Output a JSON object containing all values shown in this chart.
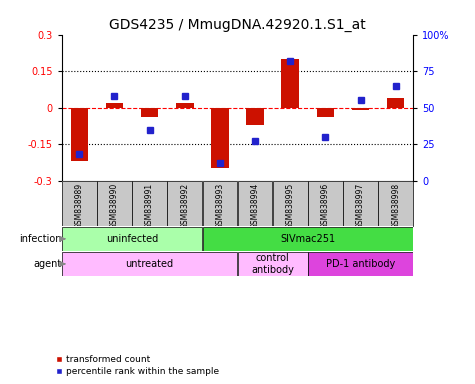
{
  "title": "GDS4235 / MmugDNA.42920.1.S1_at",
  "samples": [
    "GSM838989",
    "GSM838990",
    "GSM838991",
    "GSM838992",
    "GSM838993",
    "GSM838994",
    "GSM838995",
    "GSM838996",
    "GSM838997",
    "GSM838998"
  ],
  "red_bars": [
    -0.22,
    0.02,
    -0.04,
    0.02,
    -0.25,
    -0.07,
    0.2,
    -0.04,
    -0.01,
    0.04
  ],
  "blue_dots_pct": [
    18,
    58,
    35,
    58,
    12,
    27,
    82,
    30,
    55,
    65
  ],
  "ylim_left": [
    -0.3,
    0.3
  ],
  "ylim_right": [
    0,
    100
  ],
  "yticks_left": [
    -0.3,
    -0.15,
    0,
    0.15,
    0.3
  ],
  "ytick_labels_left": [
    "-0.3",
    "-0.15",
    "0",
    "0.15",
    "0.3"
  ],
  "yticks_right": [
    0,
    25,
    50,
    75,
    100
  ],
  "ytick_labels_right": [
    "0",
    "25",
    "50",
    "75",
    "100%"
  ],
  "hlines_dotted": [
    -0.15,
    0.15
  ],
  "hline_zero_color": "#ff0000",
  "infection_groups": [
    {
      "label": "uninfected",
      "start": 0,
      "end": 4,
      "color": "#aaffaa"
    },
    {
      "label": "SIVmac251",
      "start": 4,
      "end": 10,
      "color": "#44dd44"
    }
  ],
  "agent_groups": [
    {
      "label": "untreated",
      "start": 0,
      "end": 5,
      "color": "#ffbbff"
    },
    {
      "label": "control\nantibody",
      "start": 5,
      "end": 7,
      "color": "#ffbbff"
    },
    {
      "label": "PD-1 antibody",
      "start": 7,
      "end": 10,
      "color": "#dd44dd"
    }
  ],
  "bar_color": "#cc1100",
  "dot_color": "#2222cc",
  "bg_sample_row": "#c8c8c8",
  "title_fontsize": 10,
  "tick_fontsize": 7,
  "label_fontsize": 7,
  "bar_width": 0.5
}
